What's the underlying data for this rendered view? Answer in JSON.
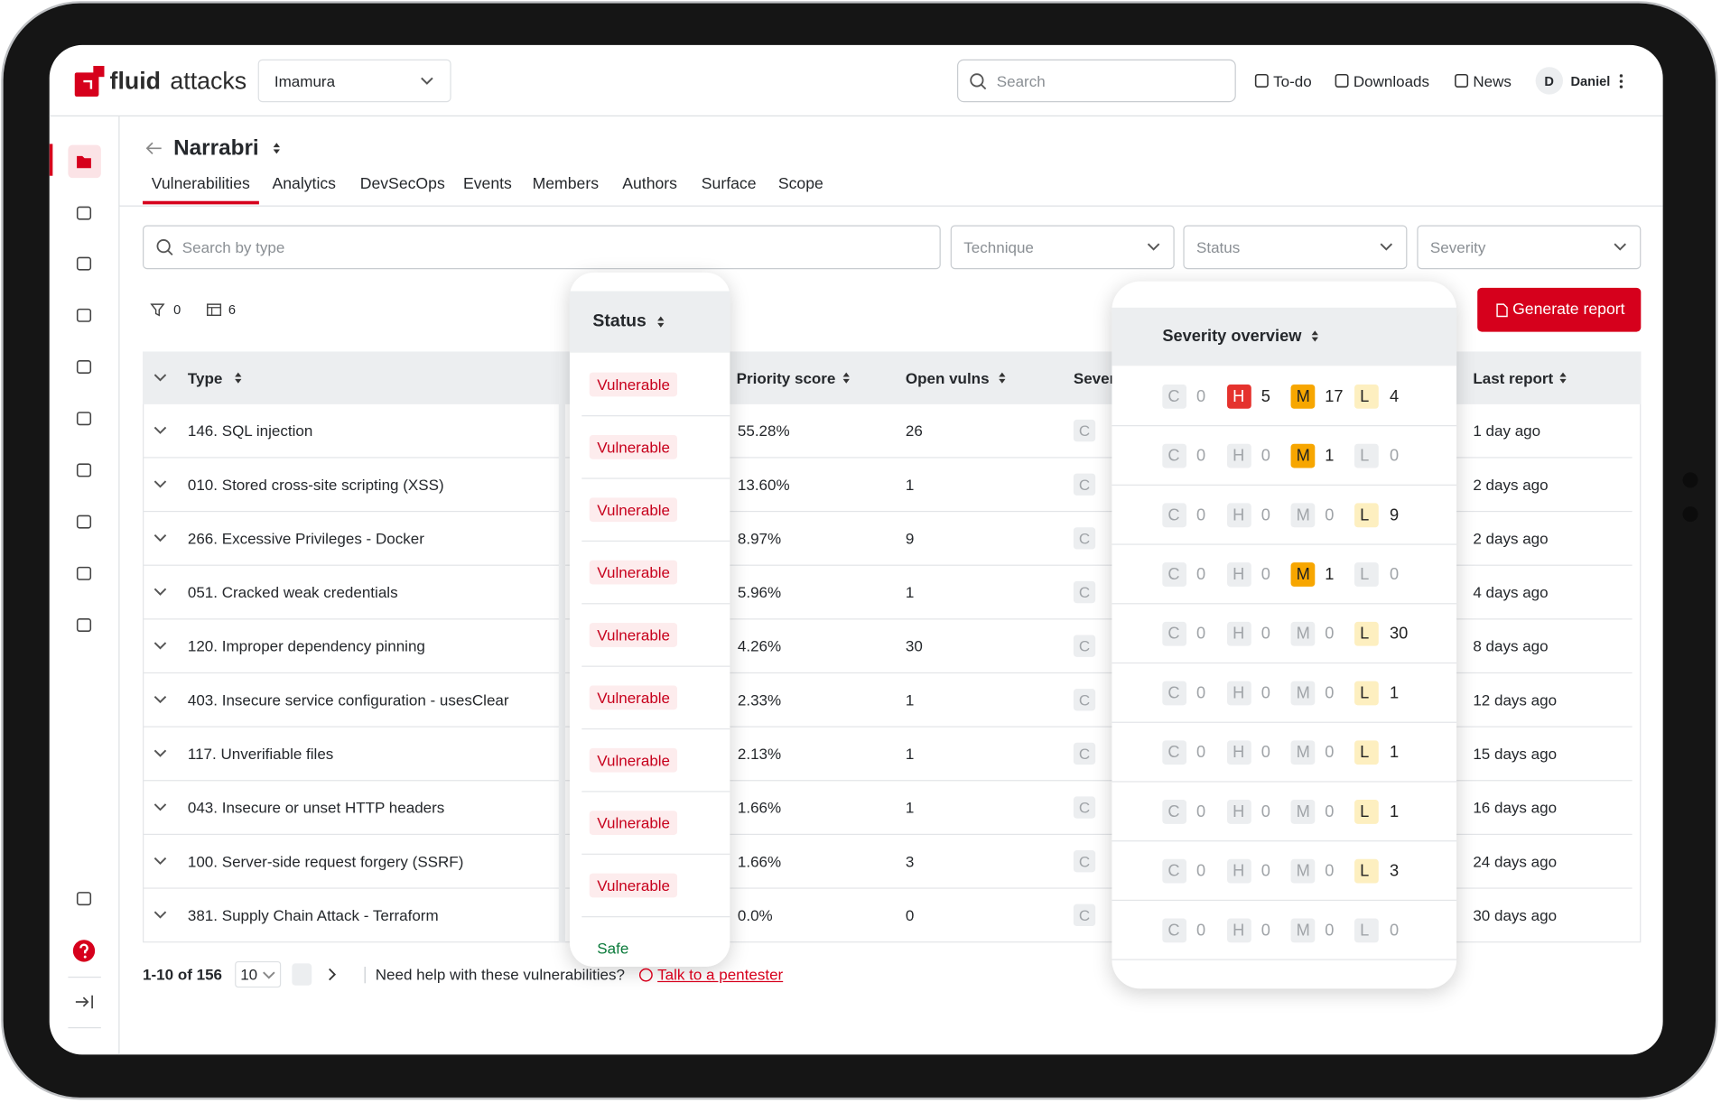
{
  "header": {
    "logo_bold": "fluid",
    "logo_light": "attacks",
    "organization": "Imamura",
    "search_placeholder": "Search",
    "nav": [
      "To-do",
      "Downloads",
      "News"
    ],
    "avatar": "D",
    "user": "Daniel"
  },
  "group": {
    "name": "Narrabri",
    "tabs": [
      "Vulnerabilities",
      "Analytics",
      "DevSecOps",
      "Events",
      "Members",
      "Authors",
      "Surface",
      "Scope"
    ]
  },
  "filters": {
    "search_placeholder": "Search by type",
    "dropdowns": [
      "Technique",
      "Status",
      "Severity"
    ],
    "filter_count": "0",
    "column_count": "6",
    "generate_button": "Generate report"
  },
  "table": {
    "columns": [
      "Type",
      "Priority score",
      "Open vulns",
      "Sever",
      "Last report"
    ],
    "rows": [
      [
        "146. SQL injection",
        "55.28%",
        "26",
        "1 day ago"
      ],
      [
        "010. Stored cross-site scripting (XSS)",
        "13.60%",
        "1",
        "2 days ago"
      ],
      [
        "266. Excessive Privileges - Docker",
        "8.97%",
        "9",
        "2 days ago"
      ],
      [
        "051. Cracked weak credentials",
        "5.96%",
        "1",
        "4 days ago"
      ],
      [
        "120. Improper dependency pinning",
        "4.26%",
        "30",
        "8 days ago"
      ],
      [
        "403. Insecure service configuration - usesClear",
        "2.33%",
        "1",
        "12 days ago"
      ],
      [
        "117. Unverifiable files",
        "2.13%",
        "1",
        "15 days ago"
      ],
      [
        "043. Insecure or unset HTTP headers",
        "1.66%",
        "1",
        "16 days ago"
      ],
      [
        "100. Server-side request forgery (SSRF)",
        "1.66%",
        "3",
        "24 days ago"
      ],
      [
        "381. Supply Chain Attack - Terraform",
        "0.0%",
        "0",
        "30 days ago"
      ]
    ]
  },
  "status_popup": {
    "header": "Status",
    "statuses": [
      "Vulnerable",
      "Vulnerable",
      "Vulnerable",
      "Vulnerable",
      "Vulnerable",
      "Vulnerable",
      "Vulnerable",
      "Vulnerable",
      "Vulnerable",
      "Safe"
    ]
  },
  "severity_popup": {
    "header": "Severity overview",
    "labels": [
      "C",
      "H",
      "M",
      "L"
    ],
    "rows": [
      [
        0,
        5,
        17,
        4
      ],
      [
        0,
        0,
        1,
        0
      ],
      [
        0,
        0,
        0,
        9
      ],
      [
        0,
        0,
        1,
        0
      ],
      [
        0,
        0,
        0,
        30
      ],
      [
        0,
        0,
        0,
        1
      ],
      [
        0,
        0,
        0,
        1
      ],
      [
        0,
        0,
        0,
        1
      ],
      [
        0,
        0,
        0,
        3
      ],
      [
        0,
        0,
        0,
        0
      ]
    ]
  },
  "footer": {
    "range": "1-10 of 156",
    "page_size": "10",
    "help_text": "Need help with these vulnerabilities?",
    "link": "Talk to a pentester"
  }
}
